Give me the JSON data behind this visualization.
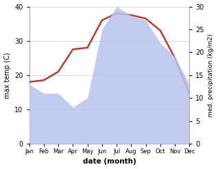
{
  "months": [
    "Jan",
    "Feb",
    "Mar",
    "Apr",
    "May",
    "Jun",
    "Jul",
    "Aug",
    "Sep",
    "Oct",
    "Nov",
    "Dec"
  ],
  "max_temp": [
    18,
    18.5,
    21,
    27.5,
    28,
    36,
    38,
    37.5,
    36.5,
    33,
    25,
    14.5
  ],
  "precipitation": [
    13,
    11,
    11,
    8,
    10,
    25,
    30,
    28,
    27,
    22,
    19,
    13
  ],
  "temp_color": "#c0392b",
  "precip_fill_color": "#b8c4ee",
  "precip_line_color": "#b8c4ee",
  "title": "",
  "xlabel": "date (month)",
  "ylabel_left": "max temp (C)",
  "ylabel_right": "med. precipitation (kg/m2)",
  "ylim_left": [
    0,
    40
  ],
  "ylim_right": [
    0,
    30
  ],
  "yticks_left": [
    0,
    10,
    20,
    30,
    40
  ],
  "yticks_right": [
    0,
    5,
    10,
    15,
    20,
    25,
    30
  ],
  "background_color": "#ffffff",
  "grid_color": "#cccccc"
}
